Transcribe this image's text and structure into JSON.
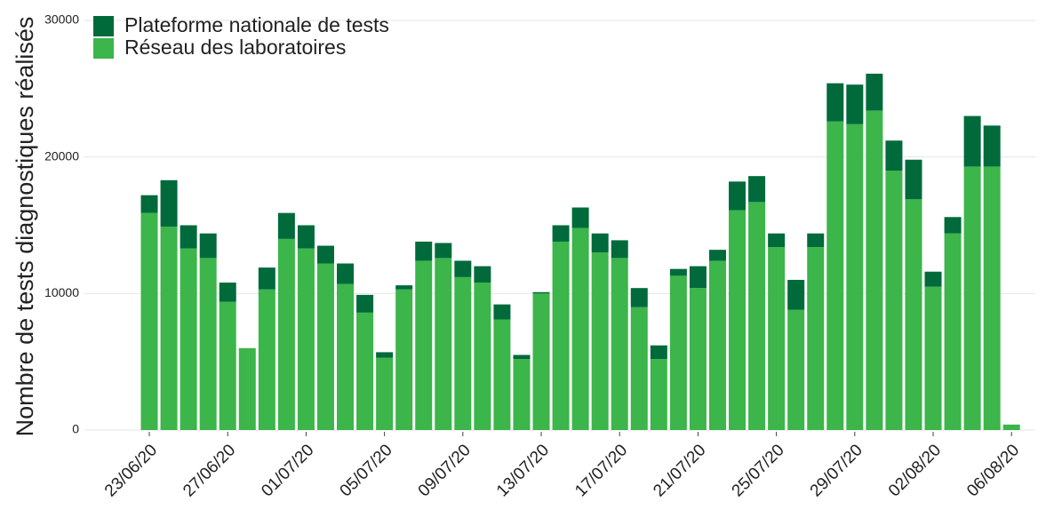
{
  "chart_data": {
    "type": "stacked_bar",
    "y_label": "Nombre de tests diagnostiques réalisés",
    "categories": [
      "23/06/20",
      null,
      null,
      null,
      "27/06/20",
      null,
      null,
      null,
      "01/07/20",
      null,
      null,
      null,
      "05/07/20",
      null,
      null,
      null,
      "09/07/20",
      null,
      null,
      null,
      "13/07/20",
      null,
      null,
      null,
      "17/07/20",
      null,
      null,
      null,
      "21/07/20",
      null,
      null,
      null,
      "25/07/20",
      null,
      null,
      null,
      "29/07/20",
      null,
      null,
      null,
      "02/08/20",
      null,
      null,
      null,
      "06/08/20"
    ],
    "series": [
      {
        "name": "Plateforme nationale de tests",
        "color": "#006a3b",
        "values": [
          1300,
          3400,
          1700,
          1800,
          1400,
          0,
          1600,
          1900,
          1700,
          1300,
          1500,
          1300,
          400,
          300,
          1400,
          1100,
          1200,
          1200,
          1100,
          300,
          100,
          1200,
          1500,
          1400,
          1300,
          1400,
          1000,
          500,
          1600,
          800,
          2100,
          1900,
          1000,
          2200,
          1000,
          2800,
          2900,
          2700,
          2200,
          2900,
          1100,
          1200,
          3700,
          3000,
          0
        ]
      },
      {
        "name": "Réseau des laboratoires",
        "color": "#3cb54a",
        "values": [
          15900,
          14900,
          13300,
          12600,
          9400,
          6000,
          10300,
          14000,
          13300,
          12200,
          10700,
          8600,
          5300,
          10300,
          12400,
          12600,
          11200,
          10800,
          8100,
          5200,
          10000,
          13800,
          14800,
          13000,
          12600,
          9000,
          5200,
          11300,
          10400,
          12400,
          16100,
          16700,
          13400,
          8800,
          13400,
          22600,
          22400,
          23400,
          19000,
          16900,
          10500,
          14400,
          19300,
          19300,
          400
        ]
      }
    ],
    "ylim": [
      0,
      30000
    ],
    "yticks": [
      0,
      10000,
      20000,
      30000
    ],
    "grid": true,
    "legend": "top-left"
  }
}
